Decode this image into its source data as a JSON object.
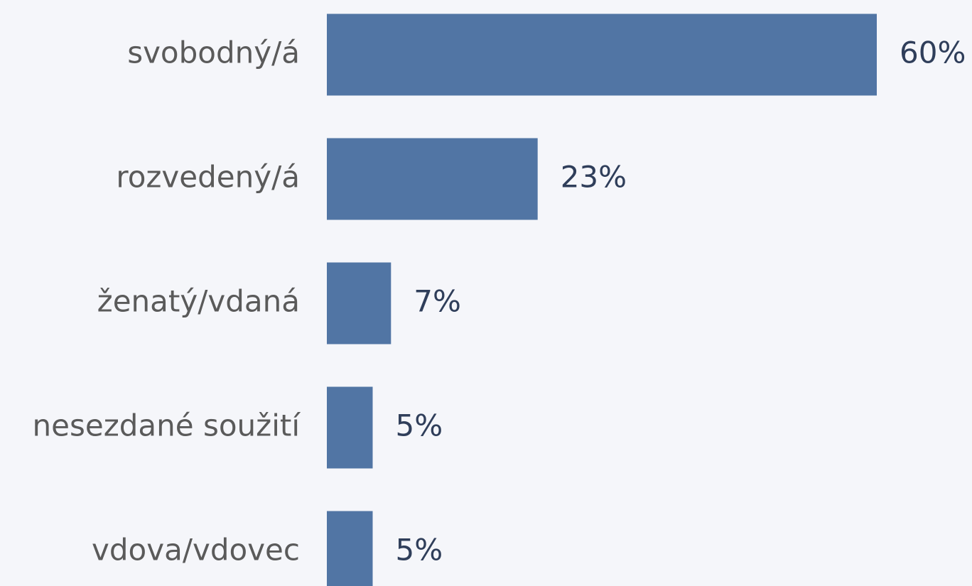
{
  "chart_data": {
    "type": "bar",
    "orientation": "horizontal",
    "categories": [
      "svobodný/á",
      "rozvedený/á",
      "ženatý/vdaná",
      "nesezdané soužití",
      "vdova/vdovec"
    ],
    "values": [
      60,
      23,
      7,
      5,
      5
    ],
    "value_labels": [
      "60%",
      "23%",
      "7%",
      "5%",
      "5%"
    ],
    "color": "#5175a4"
  }
}
